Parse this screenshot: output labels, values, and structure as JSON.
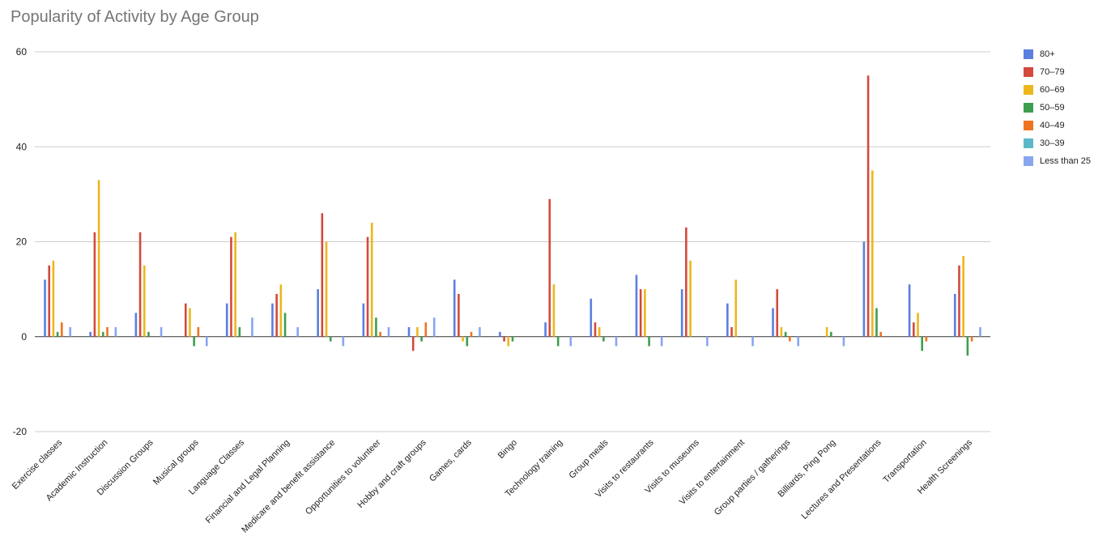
{
  "chart_data": {
    "type": "bar",
    "title": "Popularity of Activity by Age Group",
    "xlabel": "",
    "ylabel": "",
    "ylim": [
      -20,
      60
    ],
    "yticks": [
      "60",
      "40",
      "20",
      "0",
      "-20"
    ],
    "grid": true,
    "legend_position": "right",
    "categories": [
      "Exercise classes",
      "Academic Instruction",
      "Discussion Groups",
      "Musical groups",
      "Language Classes",
      "Financial and Legal Planning",
      "Medicare and benefit assistance",
      "Opportunities to volunteer",
      "Hobby and craft groups",
      "Games, cards",
      "Bingo",
      "Technology training",
      "Group meals",
      "Visits to restaurants",
      "Visits to museums",
      "Visits to entertainment",
      "Group parties / gatherings",
      "Billiards, Ping Pong",
      "Lectures and Presentations",
      "Transportation",
      "Health Screenings"
    ],
    "series": [
      {
        "name": "80+",
        "color": "#5b7fe0",
        "values": [
          12,
          1,
          5,
          0,
          7,
          7,
          10,
          7,
          2,
          12,
          1,
          3,
          8,
          13,
          10,
          7,
          6,
          0,
          20,
          11,
          9
        ]
      },
      {
        "name": "70–79",
        "color": "#d24a3c",
        "values": [
          15,
          22,
          22,
          7,
          21,
          9,
          26,
          21,
          -3,
          9,
          -1,
          29,
          3,
          10,
          23,
          2,
          10,
          0,
          55,
          3,
          15
        ]
      },
      {
        "name": "60–69",
        "color": "#ecb71c",
        "values": [
          16,
          33,
          15,
          6,
          22,
          11,
          20,
          24,
          2,
          -1,
          -2,
          11,
          2,
          10,
          16,
          12,
          2,
          2,
          35,
          5,
          17
        ]
      },
      {
        "name": "50–59",
        "color": "#3e9e4f",
        "values": [
          1,
          1,
          1,
          -2,
          2,
          5,
          -1,
          4,
          -1,
          -2,
          -1,
          -2,
          -1,
          -2,
          0,
          0,
          1,
          1,
          6,
          -3,
          -4
        ]
      },
      {
        "name": "40–49",
        "color": "#f0741f",
        "values": [
          3,
          2,
          0,
          2,
          0,
          0,
          0,
          1,
          3,
          1,
          0,
          0,
          0,
          0,
          0,
          0,
          -1,
          0,
          1,
          -1,
          -1
        ]
      },
      {
        "name": "30–39",
        "color": "#5cb8c8",
        "values": [
          0,
          0,
          0,
          0,
          0,
          0,
          0,
          0,
          0,
          0,
          0,
          0,
          0,
          0,
          0,
          0,
          0,
          0,
          0,
          0,
          0
        ]
      },
      {
        "name": "Less than 25",
        "color": "#87a6ef",
        "values": [
          2,
          2,
          2,
          -2,
          4,
          2,
          -2,
          2,
          4,
          2,
          0,
          -2,
          -2,
          -2,
          -2,
          -2,
          -2,
          -2,
          0,
          0,
          2
        ]
      }
    ]
  }
}
